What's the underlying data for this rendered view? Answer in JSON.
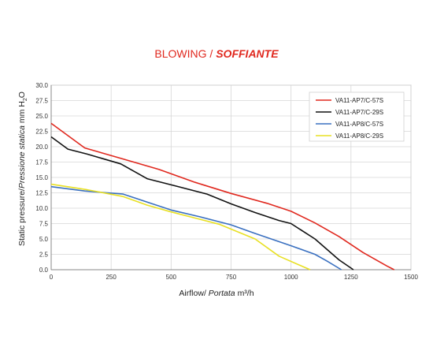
{
  "title": {
    "main": "BLOWING",
    "sep": " / ",
    "italic": "SOFFIANTE"
  },
  "chart_data": {
    "type": "line",
    "xlabel": {
      "text": "Airflow",
      "italic": "Portata",
      "unit": "m³/h"
    },
    "ylabel": {
      "text": "Static pressure/",
      "italic": "Pressione statica",
      "unit": "mm H",
      "sub": "2",
      "end": "O"
    },
    "xlim": [
      0,
      1500
    ],
    "ylim": [
      0,
      30
    ],
    "xticks": [
      "0",
      "250",
      "500",
      "750",
      "1000",
      "1250",
      "1500"
    ],
    "yticks": [
      "0.0",
      "2.5",
      "5.0",
      "7.5",
      "10.0",
      "12.5",
      "15.0",
      "17.5",
      "20.0",
      "22.5",
      "25.0",
      "27.5",
      "30.0"
    ],
    "grid": true,
    "legend_position": "top-right",
    "series": [
      {
        "name": "VA11-AP7/C-57S",
        "color": "#e0281e",
        "x": [
          0,
          140,
          300,
          450,
          600,
          750,
          900,
          1000,
          1100,
          1200,
          1300,
          1400,
          1430
        ],
        "y": [
          23.8,
          19.8,
          18.0,
          16.3,
          14.2,
          12.4,
          10.8,
          9.5,
          7.6,
          5.4,
          2.8,
          0.6,
          0.0
        ]
      },
      {
        "name": "VA11-AP7/C-29S",
        "color": "#111111",
        "x": [
          0,
          70,
          150,
          290,
          400,
          520,
          650,
          750,
          850,
          950,
          1000,
          1100,
          1200,
          1260
        ],
        "y": [
          21.6,
          19.6,
          18.8,
          17.2,
          14.8,
          13.6,
          12.3,
          10.7,
          9.3,
          8.0,
          7.5,
          5.0,
          1.6,
          0.0
        ]
      },
      {
        "name": "VA11-AP8/C-57S",
        "color": "#3a70c0",
        "x": [
          0,
          140,
          300,
          400,
          500,
          620,
          750,
          850,
          1000,
          1100,
          1150,
          1210
        ],
        "y": [
          13.5,
          12.8,
          12.3,
          11.0,
          9.7,
          8.6,
          7.3,
          5.9,
          3.9,
          2.5,
          1.4,
          0.0
        ]
      },
      {
        "name": "VA11-AP8/C-29S",
        "color": "#e8e023",
        "x": [
          0,
          150,
          300,
          400,
          500,
          600,
          700,
          850,
          950,
          1050,
          1080
        ],
        "y": [
          13.9,
          13.0,
          11.9,
          10.5,
          9.4,
          8.4,
          7.4,
          5.0,
          2.2,
          0.5,
          0.0
        ]
      }
    ]
  }
}
